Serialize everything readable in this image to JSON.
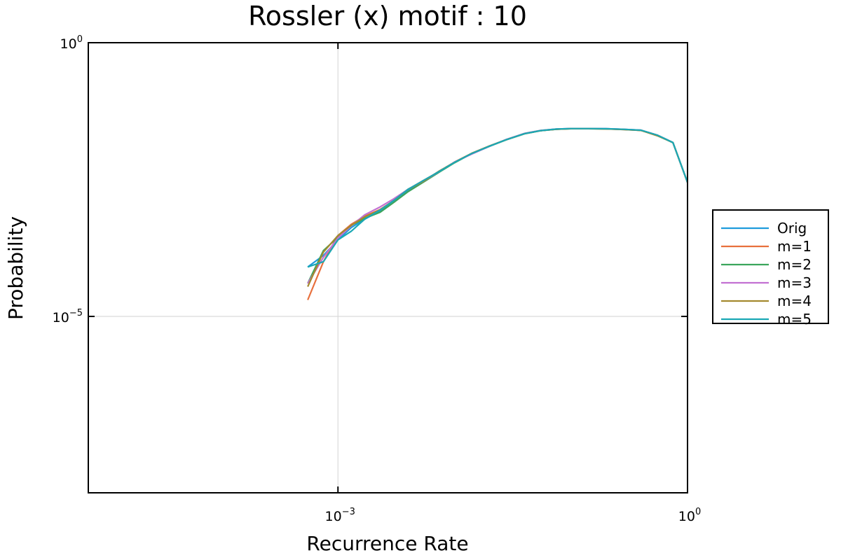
{
  "chart_data": {
    "type": "line",
    "title": "Rossler (x) motif : 10",
    "xlabel": "Recurrence Rate",
    "ylabel": "Probability",
    "xscale": "log",
    "yscale": "log",
    "xlim": [
      7.2e-06,
      1.0
    ],
    "ylim": [
      6e-09,
      1.0
    ],
    "xticks": [
      {
        "value": 0.001,
        "base": "10",
        "exp": "−3"
      },
      {
        "value": 1.0,
        "base": "10",
        "exp": "0"
      }
    ],
    "yticks": [
      {
        "value": 1.0,
        "base": "10",
        "exp": "0"
      },
      {
        "value": 1e-05,
        "base": "10",
        "exp": "−5"
      }
    ],
    "grid": true,
    "legend_position": "outside-right",
    "x": [
      0.00055,
      0.00075,
      0.001,
      0.0013,
      0.0017,
      0.0023,
      0.003,
      0.004,
      0.0055,
      0.0075,
      0.01,
      0.014,
      0.02,
      0.028,
      0.04,
      0.055,
      0.075,
      0.1,
      0.14,
      0.2,
      0.28,
      0.4,
      0.55,
      0.75,
      1.0
    ],
    "series": [
      {
        "name": "Orig",
        "color": "#1f9bdc",
        "values": [
          8e-05,
          0.00013,
          0.00025,
          0.00042,
          0.0006,
          0.00085,
          0.0013,
          0.002,
          0.003,
          0.0046,
          0.0065,
          0.0095,
          0.013,
          0.017,
          0.022,
          0.025,
          0.0265,
          0.027,
          0.027,
          0.0268,
          0.0262,
          0.0252,
          0.0205,
          0.015,
          0.0028
        ]
      },
      {
        "name": "m=1",
        "color": "#e8703d",
        "values": [
          2e-05,
          0.0001,
          0.0003,
          0.00048,
          0.00068,
          0.0009,
          0.0013,
          0.0021,
          0.0031,
          0.0045,
          0.0066,
          0.0095,
          0.013,
          0.017,
          0.0218,
          0.0248,
          0.0263,
          0.0268,
          0.0268,
          0.0266,
          0.026,
          0.025,
          0.0205,
          0.015,
          0.0028
        ]
      },
      {
        "name": "m=2",
        "color": "#3ba55c",
        "values": [
          4e-05,
          0.00016,
          0.00028,
          0.00046,
          0.00062,
          0.0008,
          0.0012,
          0.0019,
          0.0029,
          0.0044,
          0.0064,
          0.0094,
          0.0128,
          0.0169,
          0.0217,
          0.0247,
          0.0262,
          0.0268,
          0.0268,
          0.0266,
          0.0261,
          0.025,
          0.0203,
          0.0149,
          0.0028
        ]
      },
      {
        "name": "m=3",
        "color": "#c271d2",
        "values": [
          4e-05,
          0.00012,
          0.00027,
          0.00045,
          0.00072,
          0.001,
          0.0014,
          0.0021,
          0.003,
          0.0045,
          0.0066,
          0.0092,
          0.0128,
          0.0172,
          0.022,
          0.025,
          0.0264,
          0.027,
          0.027,
          0.0268,
          0.0262,
          0.0252,
          0.0205,
          0.015,
          0.0028
        ]
      },
      {
        "name": "m=4",
        "color": "#a4892f",
        "values": [
          3.5e-05,
          0.00015,
          0.0003,
          0.00046,
          0.00066,
          0.00088,
          0.0013,
          0.0021,
          0.003,
          0.0046,
          0.0065,
          0.0095,
          0.013,
          0.017,
          0.0218,
          0.0248,
          0.0263,
          0.0269,
          0.0269,
          0.0266,
          0.026,
          0.025,
          0.02,
          0.015,
          0.0028
        ]
      },
      {
        "name": "m=5",
        "color": "#1aa8b5",
        "values": [
          8e-05,
          0.0001,
          0.00025,
          0.00036,
          0.0006,
          0.00088,
          0.0013,
          0.0021,
          0.0031,
          0.0045,
          0.0065,
          0.0094,
          0.0129,
          0.017,
          0.0218,
          0.0248,
          0.0264,
          0.027,
          0.027,
          0.0268,
          0.0262,
          0.0252,
          0.0205,
          0.015,
          0.0028
        ]
      }
    ]
  }
}
